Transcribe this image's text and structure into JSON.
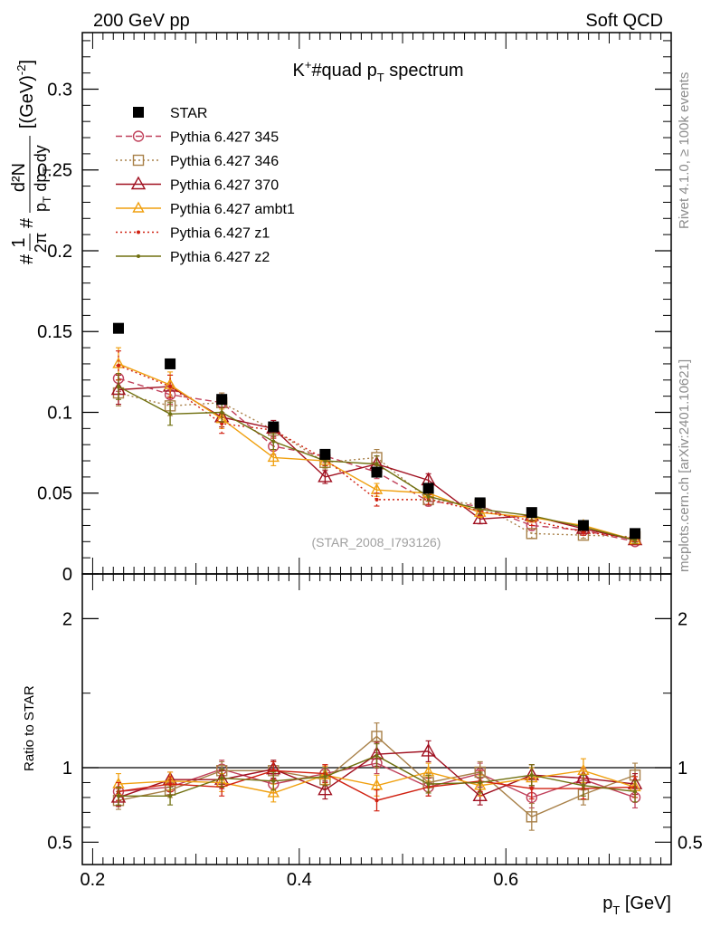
{
  "header": {
    "left": "200 GeV pp",
    "right": "Soft QCD"
  },
  "side_labels": {
    "rivet": "Rivet 4.1.0, ≥ 100k events",
    "mcplots": "mcplots.cern.ch [arXiv:2401.10621]"
  },
  "watermark": "(STAR_2008_I793126)",
  "colors": {
    "STAR": "#000000",
    "Pythia 6.427 345": "#c0405a",
    "Pythia 6.427 346": "#a88048",
    "Pythia 6.427 370": "#a01020",
    "Pythia 6.427 ambt1": "#f0a010",
    "Pythia 6.427 z1": "#d02010",
    "Pythia 6.427 z2": "#707010"
  },
  "chart_data": [
    {
      "type": "scatter",
      "title": "K^{+}#quad p_{T} spectrum",
      "title_parts": {
        "a": "K",
        "sup": "+",
        "b": "#quad p",
        "sub": "T",
        "c": " spectrum"
      },
      "ylabel": "#frac{1}{2π} #frac{d²N}{p_{T} dp_{T} dy} [(GeV)^{-2}]",
      "ylabel_parts": {
        "pre": "#",
        "one": "1",
        "twopi": "2π",
        "mid": "#",
        "num": "d²N",
        "den": "p",
        "den_sub": "T",
        "den_rest": " dp",
        "den_sub2": "T",
        "den_end": " dy",
        "units": "[(GeV)",
        "units_sup": "-2",
        "units_end": "]"
      },
      "xlim": [
        0.19,
        0.76
      ],
      "ylim": [
        0,
        0.335
      ],
      "yticks": [
        0,
        0.05,
        0.1,
        0.15,
        0.2,
        0.25,
        0.3
      ],
      "ytick_labels": [
        "0",
        "0.05",
        "0.1",
        "0.15",
        "0.2",
        "0.25",
        "0.3"
      ],
      "x": [
        0.225,
        0.275,
        0.325,
        0.375,
        0.425,
        0.475,
        0.525,
        0.575,
        0.625,
        0.675,
        0.725
      ],
      "series": [
        {
          "name": "STAR",
          "marker": "square-filled",
          "line": "none",
          "values": [
            0.152,
            0.13,
            0.108,
            0.091,
            0.074,
            0.063,
            0.053,
            0.044,
            0.038,
            0.03,
            0.025
          ]
        },
        {
          "name": "Pythia 6.427 345",
          "marker": "circle-open",
          "line": "dashed",
          "values": [
            0.121,
            0.111,
            0.106,
            0.079,
            0.073,
            0.063,
            0.045,
            0.042,
            0.03,
            0.027,
            0.02
          ],
          "errors": [
            0.008,
            0.006,
            0.006,
            0.005,
            0.004,
            0.004,
            0.003,
            0.003,
            0.003,
            0.002,
            0.002
          ]
        },
        {
          "name": "Pythia 6.427 346",
          "marker": "square-open",
          "line": "dotted",
          "values": [
            0.112,
            0.104,
            0.106,
            0.089,
            0.069,
            0.072,
            0.046,
            0.043,
            0.025,
            0.024,
            0.023
          ],
          "errors": [
            0.008,
            0.006,
            0.006,
            0.005,
            0.004,
            0.005,
            0.003,
            0.003,
            0.003,
            0.002,
            0.002
          ]
        },
        {
          "name": "Pythia 6.427 370",
          "marker": "triangle-open",
          "line": "solid",
          "values": [
            0.114,
            0.116,
            0.097,
            0.09,
            0.06,
            0.068,
            0.058,
            0.034,
            0.036,
            0.028,
            0.021
          ],
          "errors": [
            0.009,
            0.007,
            0.006,
            0.005,
            0.004,
            0.005,
            0.004,
            0.003,
            0.003,
            0.002,
            0.002
          ]
        },
        {
          "name": "Pythia 6.427 ambt1",
          "marker": "triangle-open-small",
          "line": "solid",
          "values": [
            0.13,
            0.117,
            0.096,
            0.072,
            0.07,
            0.052,
            0.05,
            0.038,
            0.035,
            0.03,
            0.021
          ],
          "errors": [
            0.01,
            0.008,
            0.006,
            0.005,
            0.004,
            0.004,
            0.003,
            0.003,
            0.003,
            0.002,
            0.002
          ]
        },
        {
          "name": "Pythia 6.427 z1",
          "marker": "dot",
          "line": "dotted",
          "values": [
            0.129,
            0.116,
            0.093,
            0.089,
            0.071,
            0.046,
            0.046,
            0.039,
            0.033,
            0.026,
            0.022
          ],
          "errors": [
            0.009,
            0.007,
            0.006,
            0.005,
            0.004,
            0.004,
            0.003,
            0.003,
            0.003,
            0.002,
            0.002
          ]
        },
        {
          "name": "Pythia 6.427 z2",
          "marker": "dot",
          "line": "solid",
          "values": [
            0.116,
            0.099,
            0.1,
            0.082,
            0.07,
            0.068,
            0.048,
            0.04,
            0.036,
            0.029,
            0.021
          ],
          "errors": [
            0.008,
            0.007,
            0.006,
            0.005,
            0.004,
            0.005,
            0.003,
            0.003,
            0.003,
            0.002,
            0.002
          ]
        }
      ],
      "legend": [
        "STAR",
        "Pythia 6.427 345",
        "Pythia 6.427 346",
        "Pythia 6.427 370",
        "Pythia 6.427 ambt1",
        "Pythia 6.427 z1",
        "Pythia 6.427 z2"
      ]
    },
    {
      "type": "scatter",
      "title": "",
      "ylabel": "Ratio to STAR",
      "xlabel": "p_{T} [GeV]",
      "xlabel_parts": {
        "p": "p",
        "sub": "T",
        "rest": " [GeV]"
      },
      "xlim": [
        0.19,
        0.76
      ],
      "ylim": [
        0.35,
        2.3
      ],
      "xticks": [
        0.2,
        0.4,
        0.6
      ],
      "xtick_labels": [
        "0.2",
        "0.4",
        "0.6"
      ],
      "yticks": [
        0.5,
        1,
        2
      ],
      "ytick_labels": [
        "0.5",
        "1",
        "2"
      ],
      "reference_line": 1,
      "x": [
        0.225,
        0.275,
        0.325,
        0.375,
        0.425,
        0.475,
        0.525,
        0.575,
        0.625,
        0.675,
        0.725
      ],
      "series": [
        {
          "name": "Pythia 6.427 345",
          "values": [
            0.84,
            0.87,
            0.99,
            0.89,
            0.96,
            1.03,
            0.87,
            0.96,
            0.8,
            0.92,
            0.8
          ],
          "errors": [
            0.06,
            0.05,
            0.06,
            0.06,
            0.06,
            0.07,
            0.06,
            0.07,
            0.07,
            0.07,
            0.07
          ]
        },
        {
          "name": "Pythia 6.427 346",
          "values": [
            0.78,
            0.85,
            0.98,
            0.98,
            0.92,
            1.21,
            0.9,
            0.97,
            0.67,
            0.82,
            0.95
          ],
          "errors": [
            0.06,
            0.05,
            0.06,
            0.06,
            0.06,
            0.09,
            0.06,
            0.07,
            0.09,
            0.07,
            0.08
          ]
        },
        {
          "name": "Pythia 6.427 370",
          "values": [
            0.8,
            0.92,
            0.92,
            0.99,
            0.85,
            1.09,
            1.11,
            0.81,
            0.95,
            0.93,
            0.89
          ],
          "errors": [
            0.06,
            0.05,
            0.06,
            0.06,
            0.06,
            0.08,
            0.07,
            0.06,
            0.07,
            0.07,
            0.07
          ]
        },
        {
          "name": "Pythia 6.427 ambt1",
          "values": [
            0.89,
            0.91,
            0.9,
            0.83,
            0.95,
            0.88,
            0.97,
            0.88,
            0.93,
            0.98,
            0.87
          ],
          "errors": [
            0.07,
            0.06,
            0.06,
            0.06,
            0.06,
            0.07,
            0.06,
            0.07,
            0.07,
            0.08,
            0.07
          ]
        },
        {
          "name": "Pythia 6.427 z1",
          "values": [
            0.84,
            0.89,
            0.87,
            0.98,
            0.96,
            0.78,
            0.87,
            0.91,
            0.86,
            0.86,
            0.87
          ],
          "errors": [
            0.06,
            0.05,
            0.06,
            0.06,
            0.06,
            0.07,
            0.06,
            0.07,
            0.07,
            0.07,
            0.07
          ]
        },
        {
          "name": "Pythia 6.427 z2",
          "values": [
            0.81,
            0.81,
            0.93,
            0.91,
            0.94,
            1.08,
            0.89,
            0.9,
            0.95,
            0.88,
            0.84
          ],
          "errors": [
            0.06,
            0.06,
            0.06,
            0.06,
            0.06,
            0.08,
            0.06,
            0.07,
            0.07,
            0.07,
            0.07
          ]
        }
      ]
    }
  ]
}
